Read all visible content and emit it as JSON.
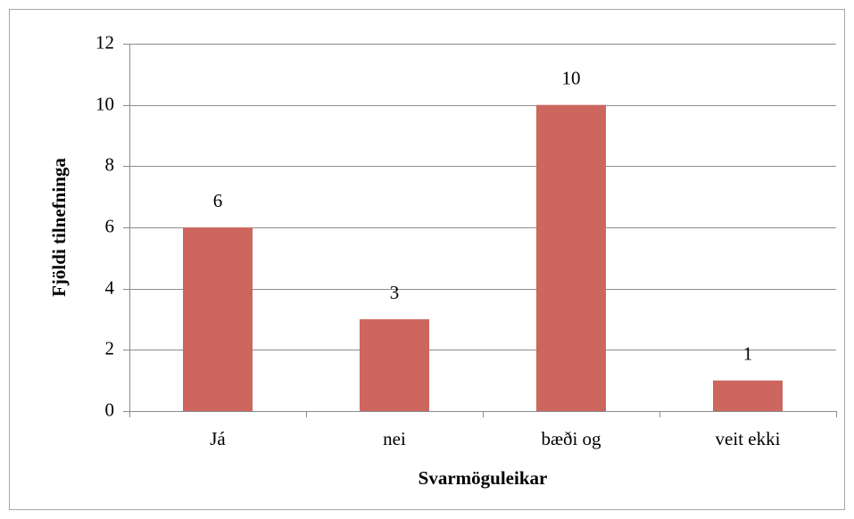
{
  "chart_data": {
    "type": "bar",
    "categories": [
      "Já",
      "nei",
      "bæði og",
      "veit ekki"
    ],
    "values": [
      6,
      3,
      10,
      1
    ],
    "color": "#cd665f",
    "xlabel": "Svarmöguleikar",
    "ylabel": "Fjöldi tilnefninga",
    "ylim": [
      0,
      12
    ],
    "yticks": [
      0,
      2,
      4,
      6,
      8,
      10,
      12
    ],
    "grid": true
  }
}
